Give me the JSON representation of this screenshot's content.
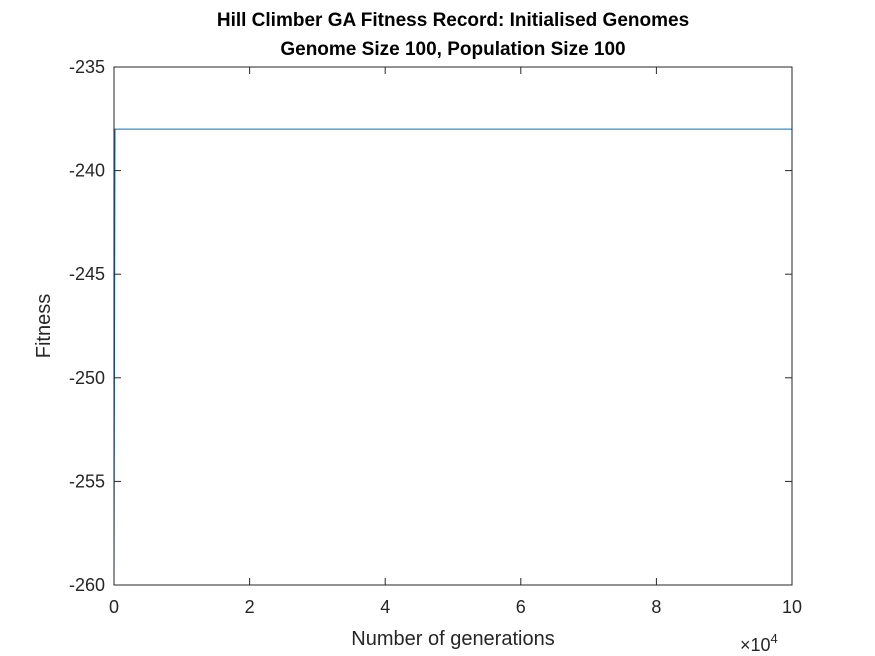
{
  "chart_data": {
    "type": "line",
    "title": "Hill Climber GA Fitness Record: Initialised Genomes",
    "subtitle": "Genome Size 100, Population Size 100",
    "xlabel": "Number of generations",
    "ylabel": "Fitness",
    "xlim": [
      0,
      100000
    ],
    "ylim": [
      -260,
      -235
    ],
    "x_ticks": [
      0,
      20000,
      40000,
      60000,
      80000,
      100000
    ],
    "x_tick_labels": [
      "0",
      "2",
      "4",
      "6",
      "8",
      "10"
    ],
    "x_exponent_label": {
      "times": "×",
      "base": "10",
      "power": "4"
    },
    "y_ticks": [
      -260,
      -255,
      -250,
      -245,
      -240,
      -235
    ],
    "y_tick_labels": [
      "-260",
      "-255",
      "-250",
      "-245",
      "-240",
      "-235"
    ],
    "grid": false,
    "series_color": "#0072BD",
    "series": [
      {
        "x": [
          0,
          150,
          100000
        ],
        "y": [
          -260,
          -238,
          -238
        ]
      }
    ]
  }
}
